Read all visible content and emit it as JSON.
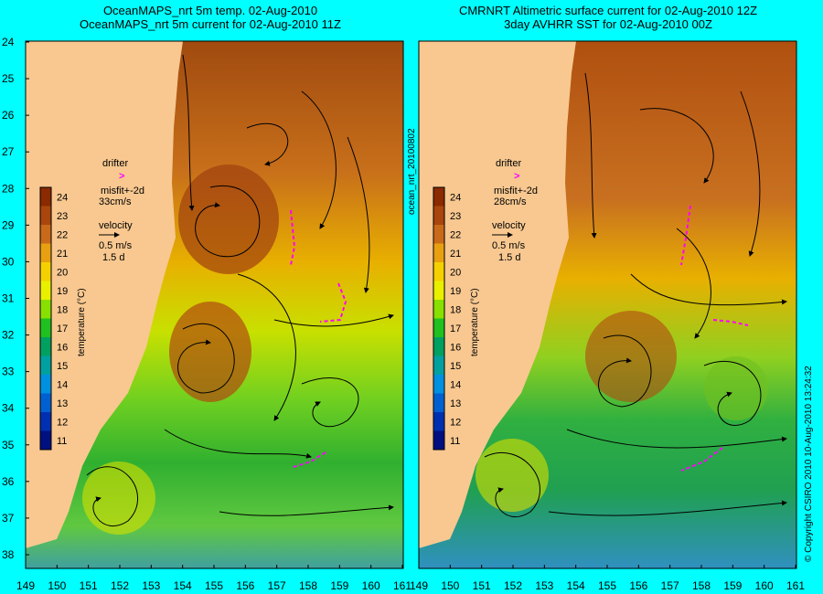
{
  "left_panel": {
    "title_line1": "OceanMAPS_nrt 5m temp. 02-Aug-2010",
    "title_line2": "OceanMAPS_nrt 5m current for 02-Aug-2010 11Z",
    "legend": {
      "drifter_label": "drifter",
      "drifter_symbol": ">",
      "misfit_label": "misfit+-2d",
      "misfit_speed": "33cm/s",
      "velocity_label": "velocity",
      "velocity_scale": "0.5 m/s",
      "velocity_duration": "1.5 d"
    }
  },
  "right_panel": {
    "title_line1": "CMRNRT Altimetric surface current for 02-Aug-2010 12Z",
    "title_line2": "3day AVHRR SST for 02-Aug-2010 00Z",
    "legend": {
      "drifter_label": "drifter",
      "drifter_symbol": ">",
      "misfit_label": "misfit+-2d",
      "misfit_speed": "28cm/s",
      "velocity_label": "velocity",
      "velocity_scale": "0.5 m/s",
      "velocity_duration": "1.5 d"
    }
  },
  "colorbar": {
    "label": "temperature (°C)",
    "ticks": [
      "24",
      "23",
      "22",
      "21",
      "20",
      "19",
      "18",
      "17",
      "16",
      "15",
      "14",
      "13",
      "12",
      "11"
    ],
    "colors": [
      "#8b2a00",
      "#a8460d",
      "#c96a1a",
      "#e8a010",
      "#f5d000",
      "#e8f000",
      "#88e000",
      "#20c020",
      "#00a060",
      "#00a0a0",
      "#0090e0",
      "#0060d0",
      "#0030b0",
      "#001080"
    ]
  },
  "y_axis_ticks": [
    "24",
    "25",
    "26",
    "27",
    "28",
    "29",
    "30",
    "31",
    "32",
    "33",
    "34",
    "35",
    "36",
    "37",
    "38"
  ],
  "x_axis_ticks": [
    "149",
    "150",
    "151",
    "152",
    "153",
    "154",
    "155",
    "156",
    "157",
    "158",
    "159",
    "160",
    "161"
  ],
  "side_label_middle": "ocean_nrt_20100802",
  "side_label_right": "© Copyright CSIRO 2010   10-Aug-2010 13:24:32",
  "colors": {
    "background": "#00ffff",
    "land": "#f8c890",
    "drifter": "#ff00ff"
  }
}
